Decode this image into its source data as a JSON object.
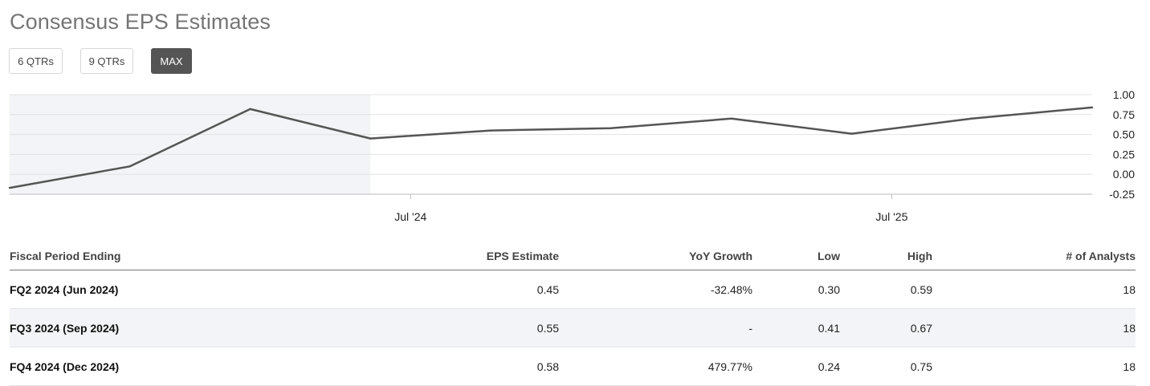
{
  "title": "Consensus EPS Estimates",
  "range_buttons": [
    {
      "label": "6 QTRs",
      "active": false
    },
    {
      "label": "9 QTRs",
      "active": false
    },
    {
      "label": "MAX",
      "active": true
    }
  ],
  "colors": {
    "line": "#555555",
    "history_shade": "#f3f4f7",
    "grid": "#e2e2e2",
    "active_button": "#555555"
  },
  "chart_data": {
    "type": "line",
    "x": [
      "2023-09",
      "2023-12",
      "2024-03",
      "2024-06",
      "2024-09",
      "2024-12",
      "2025-03",
      "2025-06",
      "2025-09",
      "2025-12"
    ],
    "series": [
      {
        "values": [
          -0.17,
          0.1,
          0.82,
          0.45,
          0.55,
          0.58,
          0.7,
          0.51,
          0.7,
          0.84
        ]
      }
    ],
    "historical_through": "2024-06",
    "x_ticks": [
      "Jul '24",
      "Jul '25"
    ],
    "y_ticks": [
      "1.00",
      "0.75",
      "0.50",
      "0.25",
      "0.00",
      "-0.25"
    ],
    "ylim": [
      -0.25,
      1.0
    ],
    "grid": true,
    "title": "",
    "xlabel": "",
    "ylabel": ""
  },
  "table": {
    "headers": [
      "Fiscal Period Ending",
      "EPS Estimate",
      "YoY Growth",
      "Low",
      "High",
      "# of Analysts"
    ],
    "rows": [
      [
        "FQ2 2024 (Jun 2024)",
        "0.45",
        "-32.48%",
        "0.30",
        "0.59",
        "18"
      ],
      [
        "FQ3 2024 (Sep 2024)",
        "0.55",
        "-",
        "0.41",
        "0.67",
        "18"
      ],
      [
        "FQ4 2024 (Dec 2024)",
        "0.58",
        "479.77%",
        "0.24",
        "0.75",
        "18"
      ]
    ]
  }
}
